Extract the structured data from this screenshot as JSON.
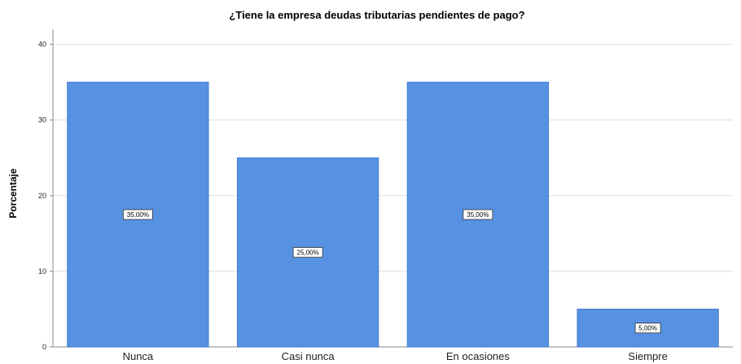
{
  "chart_data": {
    "type": "bar",
    "title": "¿Tiene la empresa deudas tributarias pendientes de pago?",
    "xlabel": "",
    "ylabel": "Porcentaje",
    "categories": [
      "Nunca",
      "Casi nunca",
      "En ocasiones",
      "Siempre"
    ],
    "values": [
      35,
      25,
      35,
      5
    ],
    "data_labels": [
      "35,00%",
      "25,00%",
      "35,00%",
      "5,00%"
    ],
    "ylim": [
      0,
      42
    ],
    "yticks": [
      0,
      10,
      20,
      30,
      40
    ],
    "ytick_labels": [
      "0",
      "10",
      "20",
      "30",
      "40"
    ],
    "grid": true,
    "legend": "none",
    "colors": {
      "bar": "#5792e2",
      "bar_edge": "#3f7ad1",
      "grid": "#dcdcdc",
      "axis": "#888888"
    }
  }
}
